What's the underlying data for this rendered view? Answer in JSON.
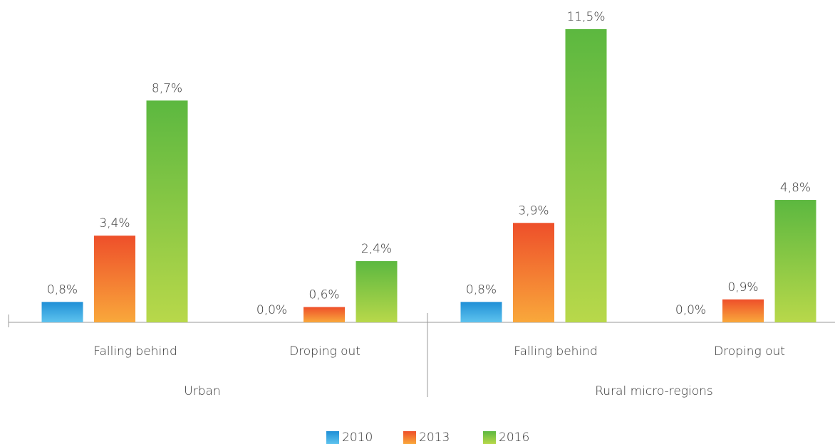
{
  "chart_data": {
    "type": "bar",
    "groups": [
      "Urban",
      "Rural micro-regions"
    ],
    "categories": [
      "Falling behind",
      "Droping out",
      "Falling behind",
      "Droping out"
    ],
    "series": [
      {
        "name": "2010",
        "color": "#1f8fd6",
        "gradient_to": "#5ec3ee",
        "values": [
          0.8,
          0,
          0.8,
          0
        ],
        "value_labels": [
          "0,8%",
          "0,0%",
          "0,8%",
          "0,0%"
        ]
      },
      {
        "name": "2013",
        "color": "#ee4f2a",
        "gradient_to": "#f9a83b",
        "values": [
          3.4,
          0.6,
          3.9,
          0.9
        ],
        "value_labels": [
          "3,4%",
          "0,6%",
          "3,9%",
          "0,9%"
        ]
      },
      {
        "name": "2016",
        "color": "#5cb840",
        "gradient_to": "#b8d84a",
        "values": [
          8.7,
          2.4,
          11.5,
          4.8
        ],
        "value_labels": [
          "8,7%",
          "2,4%",
          "11,5%",
          "4,8%"
        ]
      }
    ]
  }
}
